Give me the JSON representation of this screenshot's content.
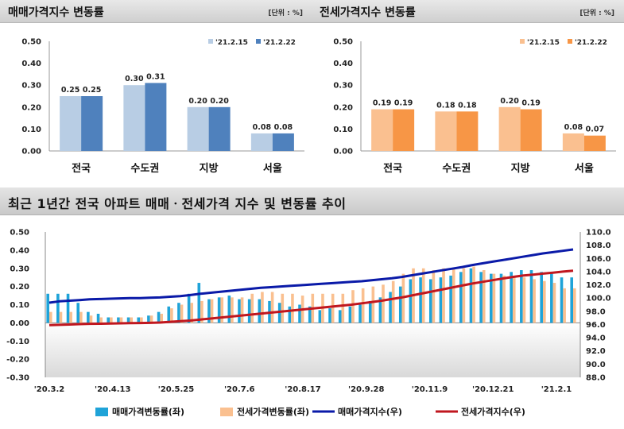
{
  "chart_data": [
    {
      "type": "bar",
      "title": "매매가격지수 변동률",
      "unit": "[단위 : %]",
      "categories": [
        "전국",
        "수도권",
        "지방",
        "서울"
      ],
      "series": [
        {
          "name": "'21.2.15",
          "values": [
            0.25,
            0.3,
            0.2,
            0.08
          ],
          "labels": [
            "0.25",
            "0.30",
            "0.20",
            "0.08"
          ],
          "color": "#b8cde4"
        },
        {
          "name": "'21.2.22",
          "values": [
            0.25,
            0.31,
            0.2,
            0.08
          ],
          "labels": [
            "0.25",
            "0.31",
            "0.20",
            "0.08"
          ],
          "color": "#4f81bd"
        }
      ],
      "ylim": [
        0,
        0.5
      ],
      "yticks": [
        "0.00",
        "0.10",
        "0.20",
        "0.30",
        "0.40",
        "0.50"
      ],
      "legend": "top-right",
      "grid": false
    },
    {
      "type": "bar",
      "title": "전세가격지수 변동률",
      "unit": "[단위 : %]",
      "categories": [
        "전국",
        "수도권",
        "지방",
        "서울"
      ],
      "series": [
        {
          "name": "'21.2.15",
          "values": [
            0.19,
            0.18,
            0.2,
            0.08
          ],
          "labels": [
            "0.19",
            "0.18",
            "0.20",
            "0.08"
          ],
          "color": "#fac090"
        },
        {
          "name": "'21.2.22",
          "values": [
            0.19,
            0.18,
            0.19,
            0.07
          ],
          "labels": [
            "0.19",
            "0.18",
            "0.19",
            "0.07"
          ],
          "color": "#f79646"
        }
      ],
      "ylim": [
        0,
        0.5
      ],
      "yticks": [
        "0.00",
        "0.10",
        "0.20",
        "0.30",
        "0.40",
        "0.50"
      ],
      "legend": "top-right",
      "grid": false
    },
    {
      "type": "bar+line",
      "title": "최근 1년간 전국 아파트 매매ㆍ전세가격 지수 및 변동률 추이",
      "x_tick_labels": [
        "'20.3.2",
        "'20.4.13",
        "'20.5.25",
        "'20.7.6",
        "'20.8.17",
        "'20.9.28",
        "'20.11.9",
        "'20.12.21",
        "'21.2.1"
      ],
      "ylim_left": [
        -0.3,
        0.5
      ],
      "yticks_left": [
        "0.50",
        "0.40",
        "0.30",
        "0.20",
        "0.10",
        "0.00",
        "-0.10",
        "-0.20",
        "-0.30"
      ],
      "ylim_right": [
        88.0,
        110.0
      ],
      "yticks_right": [
        "110.0",
        "108.0",
        "106.0",
        "104.0",
        "102.0",
        "100.0",
        "98.0",
        "96.0",
        "94.0",
        "92.0",
        "90.0",
        "88.0"
      ],
      "series": [
        {
          "name": "매매가격변동률(좌)",
          "type": "bar",
          "axis": "left",
          "color": "#1fa3d8",
          "values": [
            0.16,
            0.16,
            0.16,
            0.11,
            0.06,
            0.05,
            0.03,
            0.03,
            0.03,
            0.03,
            0.04,
            0.06,
            0.09,
            0.11,
            0.16,
            0.22,
            0.13,
            0.14,
            0.15,
            0.13,
            0.13,
            0.13,
            0.12,
            0.11,
            0.09,
            0.1,
            0.09,
            0.07,
            0.08,
            0.07,
            0.09,
            0.1,
            0.12,
            0.14,
            0.17,
            0.2,
            0.24,
            0.25,
            0.24,
            0.25,
            0.26,
            0.28,
            0.3,
            0.28,
            0.27,
            0.27,
            0.28,
            0.29,
            0.29,
            0.28,
            0.27,
            0.25,
            0.25
          ]
        },
        {
          "name": "전세가격변동률(좌)",
          "type": "bar",
          "axis": "left",
          "color": "#fac090",
          "values": [
            0.06,
            0.06,
            0.06,
            0.06,
            0.04,
            0.03,
            0.03,
            0.03,
            0.03,
            0.03,
            0.04,
            0.05,
            0.08,
            0.1,
            0.11,
            0.12,
            0.13,
            0.14,
            0.14,
            0.14,
            0.16,
            0.17,
            0.17,
            0.16,
            0.16,
            0.15,
            0.16,
            0.16,
            0.16,
            0.16,
            0.18,
            0.19,
            0.2,
            0.21,
            0.23,
            0.27,
            0.3,
            0.3,
            0.29,
            0.3,
            0.3,
            0.3,
            0.31,
            0.29,
            0.27,
            0.26,
            0.25,
            0.25,
            0.24,
            0.23,
            0.22,
            0.19,
            0.19
          ]
        },
        {
          "name": "매매가격지수(우)",
          "type": "line",
          "axis": "right",
          "color": "#0a1aa8",
          "values": [
            99.3,
            99.5,
            99.6,
            99.7,
            99.8,
            99.85,
            99.9,
            99.95,
            100.0,
            100.0,
            100.05,
            100.1,
            100.2,
            100.3,
            100.45,
            100.65,
            100.8,
            100.95,
            101.1,
            101.25,
            101.4,
            101.55,
            101.65,
            101.75,
            101.85,
            101.95,
            102.05,
            102.15,
            102.25,
            102.35,
            102.45,
            102.55,
            102.7,
            102.85,
            103.0,
            103.2,
            103.45,
            103.7,
            103.95,
            104.2,
            104.45,
            104.7,
            105.0,
            105.25,
            105.5,
            105.75,
            106.0,
            106.25,
            106.5,
            106.75,
            106.95,
            107.15,
            107.35
          ]
        },
        {
          "name": "전세가격지수(우)",
          "type": "line",
          "axis": "right",
          "color": "#c0171f",
          "values": [
            95.9,
            95.95,
            96.0,
            96.05,
            96.1,
            96.12,
            96.15,
            96.17,
            96.2,
            96.22,
            96.25,
            96.3,
            96.4,
            96.5,
            96.6,
            96.75,
            96.9,
            97.05,
            97.2,
            97.35,
            97.5,
            97.65,
            97.8,
            97.95,
            98.1,
            98.25,
            98.4,
            98.55,
            98.7,
            98.85,
            99.0,
            99.2,
            99.4,
            99.6,
            99.85,
            100.1,
            100.4,
            100.7,
            101.0,
            101.3,
            101.6,
            101.9,
            102.2,
            102.45,
            102.7,
            102.95,
            103.2,
            103.4,
            103.55,
            103.7,
            103.85,
            104.0,
            104.15
          ]
        }
      ],
      "legend": "bottom",
      "grid": false
    }
  ]
}
